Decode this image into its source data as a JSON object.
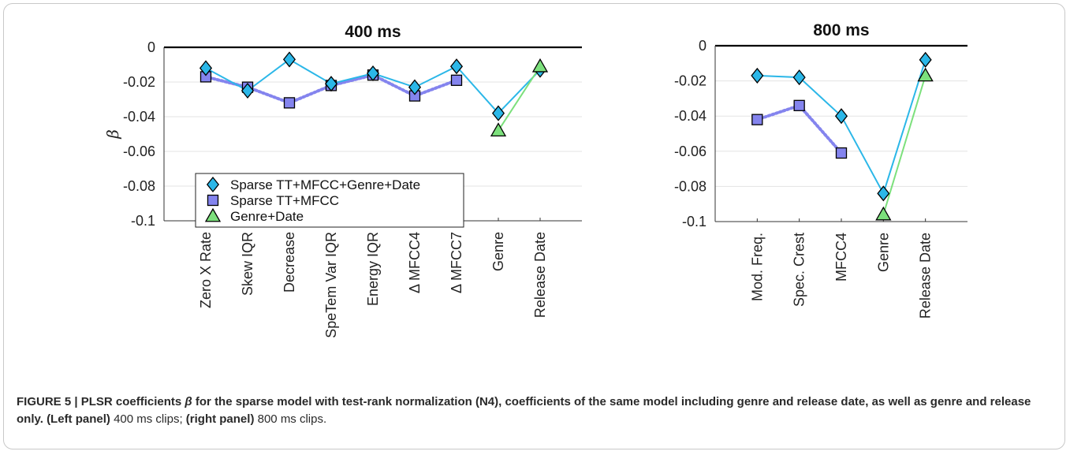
{
  "chart_data": [
    {
      "type": "line",
      "title": "400 ms",
      "ylabel": "β",
      "ylim": [
        -0.1,
        0
      ],
      "yticks": [
        0,
        -0.02,
        -0.04,
        -0.06,
        -0.08,
        -0.1
      ],
      "ytick_labels": [
        "0",
        "-0.02",
        "-0.04",
        "-0.06",
        "-0.08",
        "-0.1"
      ],
      "categories": [
        "Zero X Rate",
        "Skew IQR",
        "Decrease",
        "SpeTem Var IQR",
        "Energy IQR",
        "Δ MFCC4",
        "Δ MFCC7",
        "Genre",
        "Release Date"
      ],
      "grid": true,
      "legend_position": "lower-left",
      "series": [
        {
          "name": "Sparse TT+MFCC+Genre+Date",
          "marker": "diamond",
          "line": "solid",
          "color": "#2bb7e8",
          "values": [
            -0.012,
            -0.025,
            -0.007,
            -0.021,
            -0.015,
            -0.023,
            -0.011,
            -0.038,
            -0.013
          ]
        },
        {
          "name": "Sparse TT+MFCC",
          "marker": "square",
          "line": "dotted",
          "color": "#8484ee",
          "values": [
            -0.017,
            -0.023,
            -0.032,
            -0.022,
            -0.016,
            -0.028,
            -0.019,
            null,
            null
          ]
        },
        {
          "name": "Genre+Date",
          "marker": "triangle",
          "line": "solid",
          "color": "#7ce07c",
          "values": [
            null,
            null,
            null,
            null,
            null,
            null,
            null,
            -0.048,
            -0.011
          ]
        }
      ]
    },
    {
      "type": "line",
      "title": "800 ms",
      "ylim": [
        -0.1,
        0
      ],
      "yticks": [
        0,
        -0.02,
        -0.04,
        -0.06,
        -0.08,
        -0.1
      ],
      "ytick_labels": [
        "0",
        "-0.02",
        "-0.04",
        "-0.06",
        "-0.08",
        "-0.1"
      ],
      "categories": [
        "Mod. Freq.",
        "Spec. Crest",
        "MFCC4",
        "Genre",
        "Release Date"
      ],
      "grid": true,
      "series": [
        {
          "name": "Sparse TT+MFCC+Genre+Date",
          "marker": "diamond",
          "line": "solid",
          "color": "#2bb7e8",
          "values": [
            -0.017,
            -0.018,
            -0.04,
            -0.084,
            -0.008
          ]
        },
        {
          "name": "Sparse TT+MFCC",
          "marker": "square",
          "line": "dotted",
          "color": "#8484ee",
          "values": [
            -0.042,
            -0.034,
            -0.061,
            null,
            null
          ]
        },
        {
          "name": "Genre+Date",
          "marker": "triangle",
          "line": "solid",
          "color": "#7ce07c",
          "values": [
            null,
            null,
            null,
            -0.096,
            -0.017
          ]
        }
      ]
    }
  ],
  "caption": {
    "figure_label": "FIGURE 5 | PLSR coefficients",
    "beta": "β",
    "bold_rest": " for the sparse model with test-rank normalization (N4), coefficients of the same model including genre and release date, as well as genre and release only.",
    "left_label": "(Left panel)",
    "left_text": " 400 ms clips; ",
    "right_label": "(right panel)",
    "right_text": " 800 ms clips."
  }
}
